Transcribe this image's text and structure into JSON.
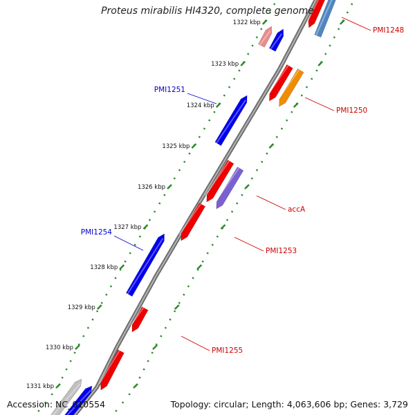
{
  "title": "Proteus mirabilis HI4320, complete genome",
  "footer": {
    "accession": "Accession: NC_010554",
    "topology": "Topology: circular; Length: 4,063,606 bp; Genes: 3,729"
  },
  "colors": {
    "backbone": "#7a7a7a",
    "tick": "#2e8b2e",
    "forward_gene": "#0000ee",
    "reverse_gene": "#ee0000",
    "forward_label": "#0000cc",
    "reverse_label": "#cc0000",
    "pink": "#e88c8c",
    "orange": "#f08c00",
    "steelblue": "#4f86c0",
    "purple": "#7a60d0",
    "grey": "#c0c0c0"
  },
  "ticks": [
    {
      "kbp": 1322,
      "label": "1322 kbp"
    },
    {
      "kbp": 1323,
      "label": "1323 kbp"
    },
    {
      "kbp": 1324,
      "label": "1324 kbp"
    },
    {
      "kbp": 1325,
      "label": "1325 kbp"
    },
    {
      "kbp": 1326,
      "label": "1326 kbp"
    },
    {
      "kbp": 1327,
      "label": "1327 kbp"
    },
    {
      "kbp": 1328,
      "label": "1328 kbp"
    },
    {
      "kbp": 1329,
      "label": "1329 kbp"
    },
    {
      "kbp": 1330,
      "label": "1330 kbp"
    },
    {
      "kbp": 1331,
      "label": "1331 kbp"
    }
  ],
  "features": [
    {
      "name": "PMI1248",
      "color": "steelblue",
      "label": "PMI1248"
    },
    {
      "name": "red-1321",
      "color": "reverse_gene",
      "label": ""
    },
    {
      "name": "pink-1322",
      "color": "pink",
      "label": ""
    },
    {
      "name": "blue-1322",
      "color": "forward_gene",
      "label": ""
    },
    {
      "name": "PMI1250",
      "color": "orange",
      "label": "PMI1250"
    },
    {
      "name": "red-1323",
      "color": "reverse_gene",
      "label": ""
    },
    {
      "name": "PMI1251",
      "color": "forward_gene",
      "label": "PMI1251"
    },
    {
      "name": "red-1325",
      "color": "reverse_gene",
      "label": ""
    },
    {
      "name": "accA",
      "color": "purple",
      "label": "accA"
    },
    {
      "name": "PMI1253",
      "color": "reverse_gene",
      "label": "PMI1253"
    },
    {
      "name": "PMI1254",
      "color": "forward_gene",
      "label": "PMI1254"
    },
    {
      "name": "red-1329",
      "color": "reverse_gene",
      "label": ""
    },
    {
      "name": "PMI1255",
      "color": "reverse_gene",
      "label": "PMI1255"
    },
    {
      "name": "grey-1331",
      "color": "grey",
      "label": ""
    },
    {
      "name": "blue-1331",
      "color": "forward_gene",
      "label": ""
    }
  ]
}
